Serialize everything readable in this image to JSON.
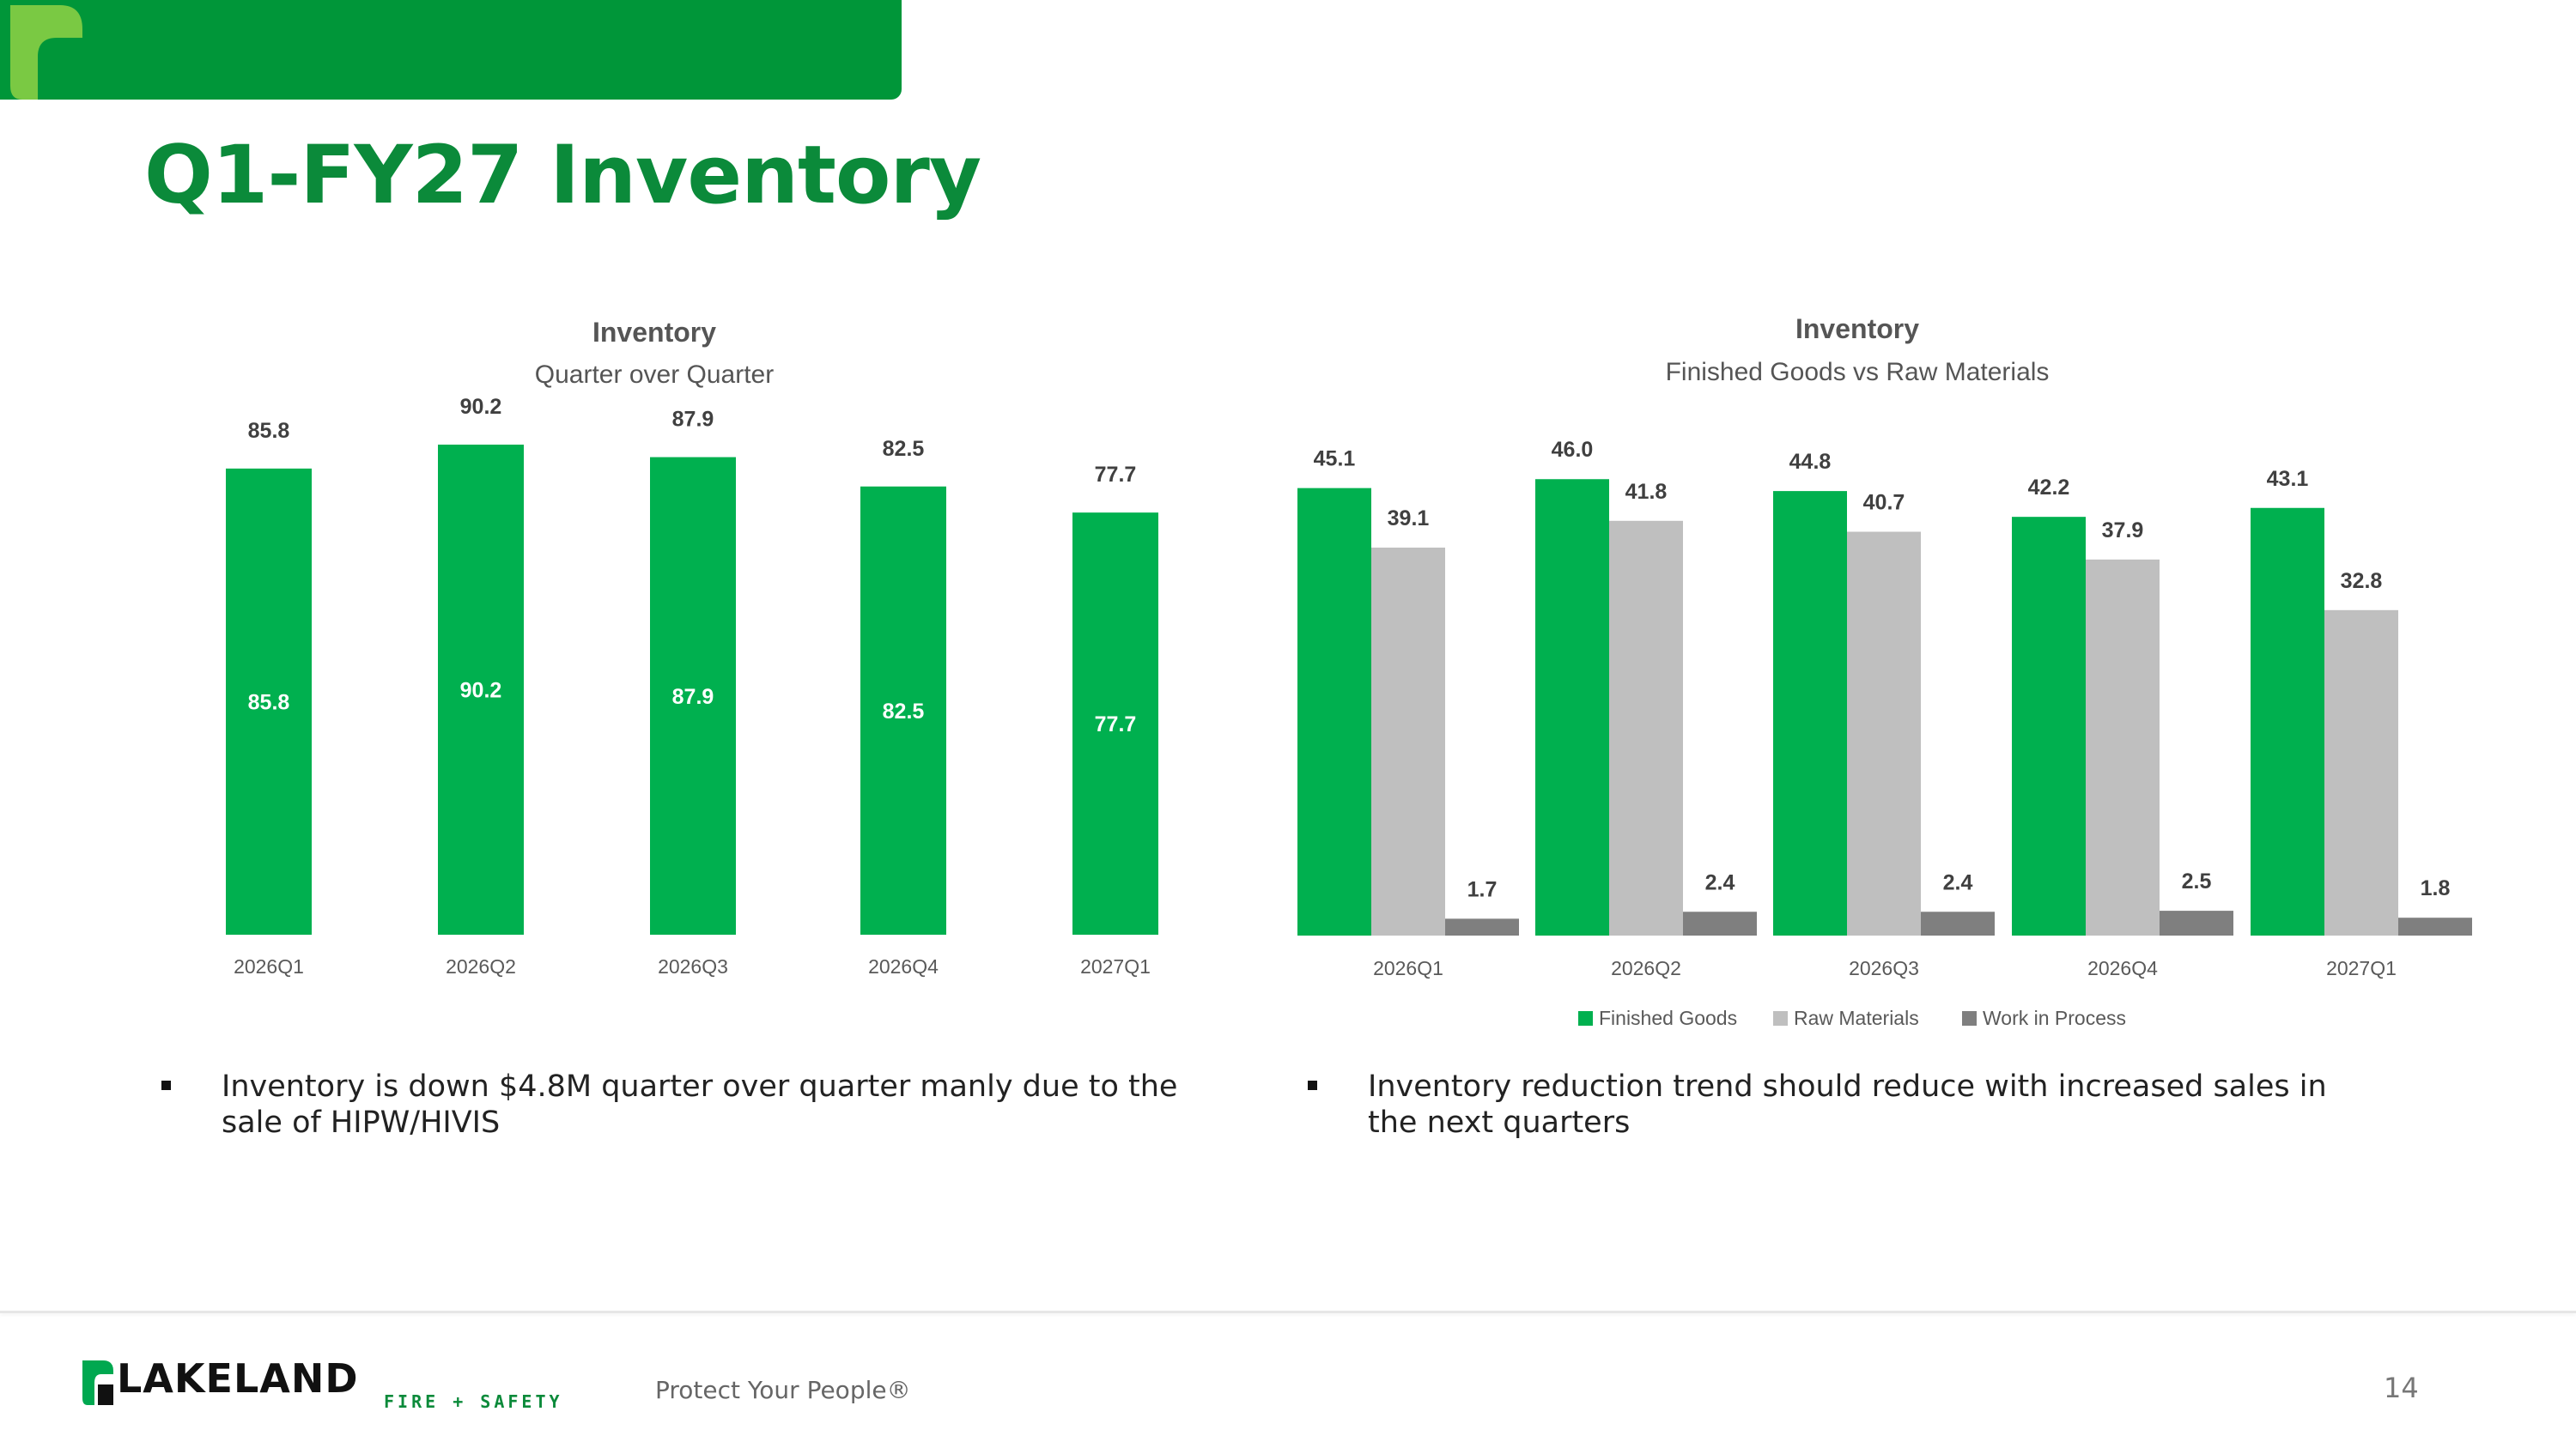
{
  "header": {
    "title": "Q1-FY27 Inventory"
  },
  "colors": {
    "brand_green": "#009639",
    "bar_green": "#00b04f",
    "raw_gray": "#bfbfbf",
    "wip_gray": "#7f7f7f",
    "title_green": "#0b8a3a"
  },
  "chart_data": [
    {
      "type": "bar",
      "title": "Inventory",
      "subtitle": "Quarter over Quarter",
      "categories": [
        "2026Q1",
        "2026Q2",
        "2026Q3",
        "2026Q4",
        "2027Q1"
      ],
      "values": [
        85.8,
        90.2,
        87.9,
        82.5,
        77.7
      ],
      "value_labels_top": [
        "85.8",
        "90.2",
        "87.9",
        "82.5",
        "77.7"
      ],
      "value_labels_inside": [
        "85.8",
        "90.2",
        "87.9",
        "82.5",
        "77.7"
      ],
      "ylim": [
        0,
        100
      ],
      "grid": false,
      "legend": "none"
    },
    {
      "type": "bar",
      "title": "Inventory",
      "subtitle": "Finished Goods vs Raw Materials",
      "categories": [
        "2026Q1",
        "2026Q2",
        "2026Q3",
        "2026Q4",
        "2027Q1"
      ],
      "series": [
        {
          "name": "Finished Goods",
          "color": "#00b04f",
          "values": [
            45.1,
            46.0,
            44.8,
            42.2,
            43.1
          ],
          "labels": [
            "45.1",
            "46.0",
            "44.8",
            "42.2",
            "43.1"
          ]
        },
        {
          "name": "Raw Materials",
          "color": "#bfbfbf",
          "values": [
            39.1,
            41.8,
            40.7,
            37.9,
            32.8
          ],
          "labels": [
            "39.1",
            "41.8",
            "40.7",
            "37.9",
            "32.8"
          ]
        },
        {
          "name": "Work in Process",
          "color": "#7f7f7f",
          "values": [
            1.7,
            2.4,
            2.4,
            2.5,
            1.8
          ],
          "labels": [
            "1.7",
            "2.4",
            "2.4",
            "2.5",
            "1.8"
          ]
        }
      ],
      "ylim": [
        0,
        50
      ],
      "grid": false,
      "legend": "bottom"
    }
  ],
  "bullets": {
    "left": "Inventory is down $4.8M quarter over quarter manly due to the sale of HIPW/HIVIS",
    "right": "Inventory reduction trend should reduce with increased sales in the next quarters"
  },
  "footer": {
    "brand": "LAKELAND",
    "brand_sub": "FIRE + SAFETY",
    "tagline": "Protect Your People®",
    "page_number": "14"
  }
}
